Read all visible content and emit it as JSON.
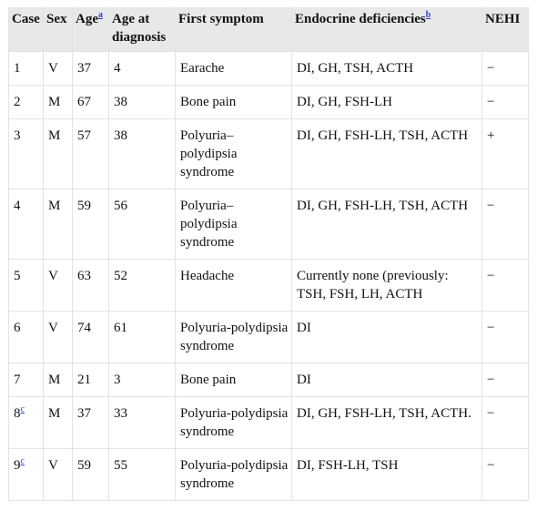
{
  "table": {
    "headers": [
      {
        "label": "Case",
        "sup": ""
      },
      {
        "label": "Sex",
        "sup": ""
      },
      {
        "label": "Age",
        "sup": "a"
      },
      {
        "label": "Age at diagnosis",
        "sup": ""
      },
      {
        "label": "First symptom",
        "sup": ""
      },
      {
        "label": "Endocrine deficiencies",
        "sup": "b"
      },
      {
        "label": "NEHI",
        "sup": ""
      }
    ],
    "rows": [
      {
        "case": "1",
        "case_sup": "",
        "sex": "V",
        "age": "37",
        "age_dx": "4",
        "symptom": "Earache",
        "deficiencies": "DI, GH, TSH, ACTH",
        "nehi": "−"
      },
      {
        "case": "2",
        "case_sup": "",
        "sex": "M",
        "age": "67",
        "age_dx": "38",
        "symptom": "Bone pain",
        "deficiencies": "DI, GH, FSH-LH",
        "nehi": "−"
      },
      {
        "case": "3",
        "case_sup": "",
        "sex": "M",
        "age": "57",
        "age_dx": "38",
        "symptom": "Polyuria–polydipsia syndrome",
        "deficiencies": "DI, GH, FSH-LH, TSH, ACTH",
        "nehi": "+"
      },
      {
        "case": "4",
        "case_sup": "",
        "sex": "M",
        "age": "59",
        "age_dx": "56",
        "symptom": "Polyuria–polydipsia syndrome",
        "deficiencies": "DI, GH, FSH-LH, TSH, ACTH",
        "nehi": "−"
      },
      {
        "case": "5",
        "case_sup": "",
        "sex": "V",
        "age": "63",
        "age_dx": "52",
        "symptom": "Headache",
        "deficiencies": "Currently none (previously: TSH, FSH, LH, ACTH",
        "nehi": "−"
      },
      {
        "case": "6",
        "case_sup": "",
        "sex": "V",
        "age": "74",
        "age_dx": "61",
        "symptom": "Polyuria-polydipsia syndrome",
        "deficiencies": "DI",
        "nehi": "−"
      },
      {
        "case": "7",
        "case_sup": "",
        "sex": "M",
        "age": "21",
        "age_dx": "3",
        "symptom": "Bone pain",
        "deficiencies": "DI",
        "nehi": "−"
      },
      {
        "case": "8",
        "case_sup": "c",
        "sex": "M",
        "age": "37",
        "age_dx": "33",
        "symptom": "Polyuria-polydipsia syndrome",
        "deficiencies": "DI, GH, FSH-LH, TSH, ACTH.",
        "nehi": "−"
      },
      {
        "case": "9",
        "case_sup": "c",
        "sex": "V",
        "age": "59",
        "age_dx": "55",
        "symptom": "Polyuria-polydipsia syndrome",
        "deficiencies": "DI, FSH-LH, TSH",
        "nehi": "−"
      }
    ]
  }
}
